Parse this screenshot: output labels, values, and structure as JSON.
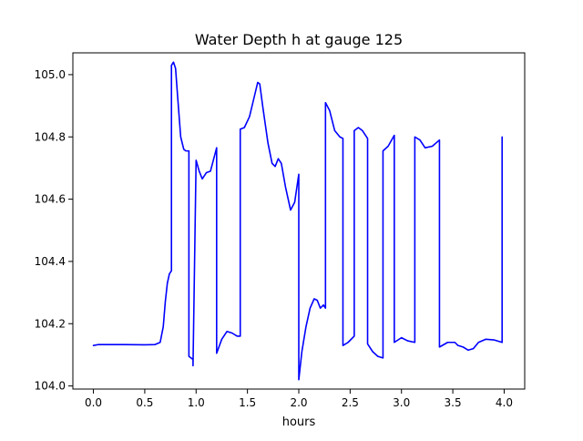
{
  "chart_data": {
    "type": "line",
    "title": "Water Depth h at gauge 125",
    "xlabel": "hours",
    "ylabel": "",
    "xlim": [
      -0.2,
      4.2
    ],
    "ylim": [
      103.99,
      105.07
    ],
    "xticks": [
      0.0,
      0.5,
      1.0,
      1.5,
      2.0,
      2.5,
      3.0,
      3.5,
      4.0
    ],
    "xtick_labels": [
      "0.0",
      "0.5",
      "1.0",
      "1.5",
      "2.0",
      "2.5",
      "3.0",
      "3.5",
      "4.0"
    ],
    "yticks": [
      104.0,
      104.2,
      104.4,
      104.6,
      104.8,
      105.0
    ],
    "ytick_labels": [
      "104.0",
      "104.2",
      "104.4",
      "104.6",
      "104.8",
      "105.0"
    ],
    "grid": false,
    "series": [
      {
        "color": "#0000ff",
        "x": [
          0.0,
          0.05,
          0.3,
          0.5,
          0.6,
          0.65,
          0.68,
          0.7,
          0.72,
          0.74,
          0.76,
          0.76,
          0.78,
          0.8,
          0.82,
          0.85,
          0.88,
          0.9,
          0.93,
          0.93,
          0.97,
          0.97,
          1.0,
          1.03,
          1.06,
          1.1,
          1.14,
          1.2,
          1.2,
          1.25,
          1.3,
          1.35,
          1.4,
          1.43,
          1.43,
          1.47,
          1.52,
          1.56,
          1.6,
          1.62,
          1.65,
          1.7,
          1.74,
          1.77,
          1.8,
          1.83,
          1.87,
          1.92,
          1.96,
          2.0,
          2.0,
          2.03,
          2.07,
          2.11,
          2.15,
          2.18,
          2.21,
          2.24,
          2.26,
          2.26,
          2.3,
          2.35,
          2.4,
          2.43,
          2.43,
          2.48,
          2.54,
          2.54,
          2.58,
          2.62,
          2.67,
          2.67,
          2.72,
          2.77,
          2.82,
          2.82,
          2.87,
          2.93,
          2.93,
          3.0,
          3.06,
          3.13,
          3.13,
          3.18,
          3.23,
          3.3,
          3.37,
          3.37,
          3.45,
          3.52,
          3.55,
          3.6,
          3.65,
          3.7,
          3.75,
          3.82,
          3.9,
          3.98,
          3.98
        ],
        "y": [
          104.13,
          104.133,
          104.133,
          104.132,
          104.133,
          104.14,
          104.19,
          104.27,
          104.33,
          104.36,
          104.37,
          105.03,
          105.04,
          105.02,
          104.93,
          104.8,
          104.76,
          104.755,
          104.755,
          104.095,
          104.085,
          104.065,
          104.725,
          104.69,
          104.665,
          104.685,
          104.69,
          104.765,
          104.105,
          104.15,
          104.175,
          104.17,
          104.16,
          104.16,
          104.825,
          104.83,
          104.865,
          104.92,
          104.975,
          104.97,
          104.895,
          104.78,
          104.715,
          104.705,
          104.73,
          104.715,
          104.64,
          104.565,
          104.59,
          104.68,
          104.02,
          104.11,
          104.19,
          104.25,
          104.28,
          104.275,
          104.25,
          104.26,
          104.25,
          104.91,
          104.885,
          104.82,
          104.8,
          104.795,
          104.13,
          104.14,
          104.16,
          104.82,
          104.83,
          104.82,
          104.795,
          104.135,
          104.11,
          104.095,
          104.09,
          104.755,
          104.77,
          104.805,
          104.14,
          104.155,
          104.145,
          104.14,
          104.8,
          104.79,
          104.765,
          104.77,
          104.79,
          104.125,
          104.14,
          104.14,
          104.13,
          104.125,
          104.115,
          104.12,
          104.14,
          104.15,
          104.148,
          104.14,
          104.8
        ]
      }
    ]
  }
}
